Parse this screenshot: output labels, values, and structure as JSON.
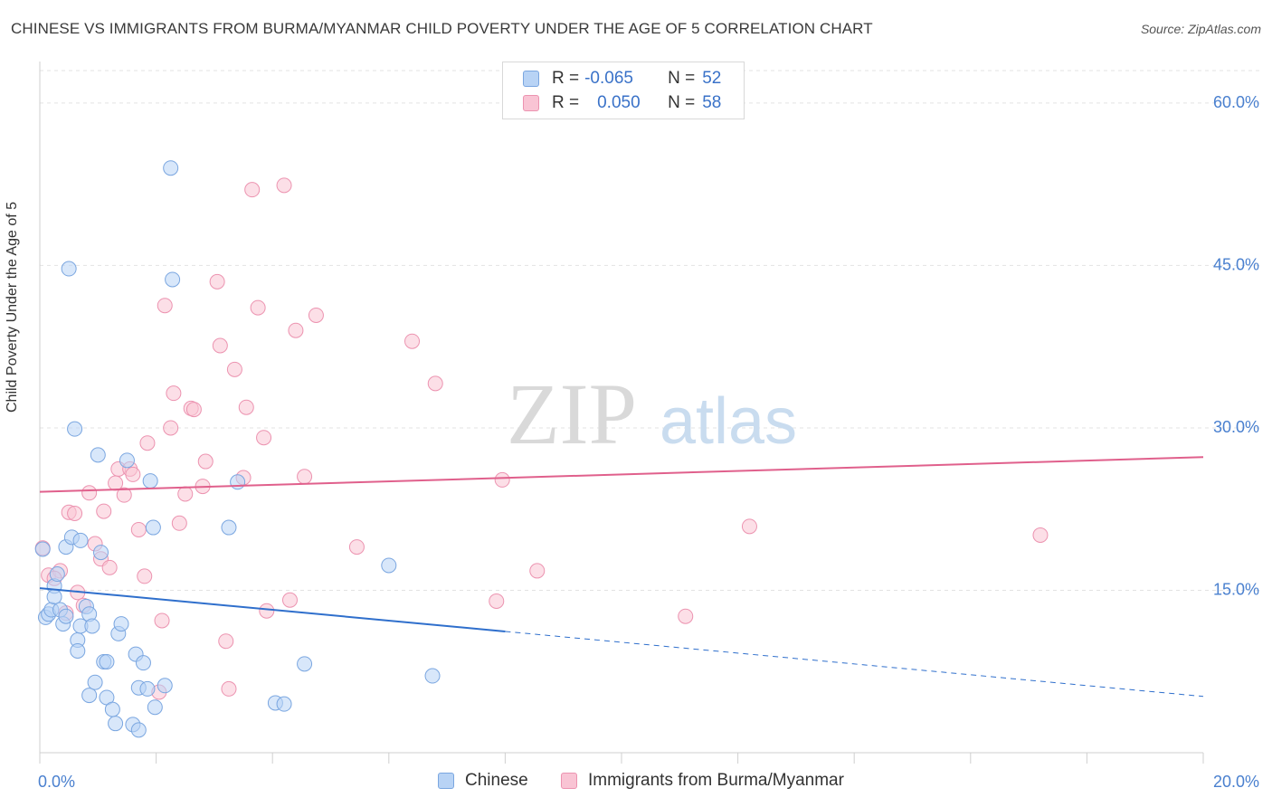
{
  "title": "CHINESE VS IMMIGRANTS FROM BURMA/MYANMAR CHILD POVERTY UNDER THE AGE OF 5 CORRELATION CHART",
  "source": "Source: ZipAtlas.com",
  "watermark": {
    "zip": "ZIP",
    "atlas": "atlas"
  },
  "legend": {
    "r_label": "R =",
    "n_label": "N =",
    "rows": [
      {
        "name": "Chinese",
        "r": "-0.065",
        "n": "52",
        "fill": "#b8d3f5",
        "stroke": "#7aa6e0"
      },
      {
        "name": "Immigrants from Burma/Myanmar",
        "r": "0.050",
        "n": "58",
        "fill": "#f9c4d4",
        "stroke": "#ec93b0"
      }
    ]
  },
  "chart_data": {
    "type": "scatter",
    "title": "CHINESE VS IMMIGRANTS FROM BURMA/MYANMAR CHILD POVERTY UNDER THE AGE OF 5 CORRELATION CHART",
    "xlabel": "",
    "ylabel": "Child Poverty Under the Age of 5",
    "xlim": [
      0,
      20
    ],
    "ylim": [
      0,
      63
    ],
    "x_tick_labels": [
      "0.0%",
      "20.0%"
    ],
    "y_ticks": [
      15,
      30,
      45,
      60
    ],
    "y_tick_labels": [
      "15.0%",
      "30.0%",
      "45.0%",
      "60.0%"
    ],
    "grid": true,
    "series": [
      {
        "name": "Chinese",
        "color": "#7aa6e0",
        "fill": "#b8d3f5",
        "trend": {
          "x0": 0,
          "y0": 15.2,
          "x1": 8.0,
          "y1": 11.2,
          "dash_to_x": 20,
          "dash_to_y": 5.2,
          "color": "#2f6fcc"
        },
        "points": [
          [
            0.05,
            18.8
          ],
          [
            0.1,
            12.5
          ],
          [
            0.15,
            12.8
          ],
          [
            0.2,
            13.2
          ],
          [
            0.25,
            15.4
          ],
          [
            0.25,
            14.4
          ],
          [
            0.3,
            16.5
          ],
          [
            0.35,
            13.2
          ],
          [
            0.4,
            11.9
          ],
          [
            0.45,
            12.6
          ],
          [
            0.45,
            19.0
          ],
          [
            0.5,
            44.7
          ],
          [
            0.55,
            19.9
          ],
          [
            0.6,
            29.9
          ],
          [
            0.65,
            10.4
          ],
          [
            0.65,
            9.4
          ],
          [
            0.7,
            19.6
          ],
          [
            0.7,
            11.7
          ],
          [
            0.8,
            13.5
          ],
          [
            0.85,
            12.8
          ],
          [
            0.85,
            5.3
          ],
          [
            0.9,
            11.7
          ],
          [
            0.95,
            6.5
          ],
          [
            1.0,
            27.5
          ],
          [
            1.05,
            18.5
          ],
          [
            1.1,
            8.4
          ],
          [
            1.15,
            5.1
          ],
          [
            1.15,
            8.4
          ],
          [
            1.25,
            4.0
          ],
          [
            1.3,
            2.7
          ],
          [
            1.35,
            11.0
          ],
          [
            1.4,
            11.9
          ],
          [
            1.5,
            27.0
          ],
          [
            1.6,
            2.6
          ],
          [
            1.65,
            9.1
          ],
          [
            1.7,
            6.0
          ],
          [
            1.7,
            2.1
          ],
          [
            1.78,
            8.3
          ],
          [
            1.85,
            5.9
          ],
          [
            1.9,
            25.1
          ],
          [
            1.95,
            20.8
          ],
          [
            1.98,
            4.2
          ],
          [
            2.15,
            6.2
          ],
          [
            2.25,
            54.0
          ],
          [
            2.28,
            43.7
          ],
          [
            3.25,
            20.8
          ],
          [
            3.4,
            25.0
          ],
          [
            4.05,
            4.6
          ],
          [
            4.2,
            4.5
          ],
          [
            4.55,
            8.2
          ],
          [
            6.0,
            17.3
          ],
          [
            6.75,
            7.1
          ]
        ]
      },
      {
        "name": "Immigrants from Burma/Myanmar",
        "color": "#ec93b0",
        "fill": "#f9c4d4",
        "trend": {
          "x0": 0,
          "y0": 24.1,
          "x1": 20,
          "y1": 27.3,
          "color": "#e0608c"
        },
        "points": [
          [
            0.05,
            18.9
          ],
          [
            0.15,
            16.4
          ],
          [
            0.35,
            16.8
          ],
          [
            0.45,
            12.9
          ],
          [
            0.5,
            22.2
          ],
          [
            0.6,
            22.1
          ],
          [
            0.65,
            14.8
          ],
          [
            0.75,
            13.6
          ],
          [
            0.85,
            24.0
          ],
          [
            0.95,
            19.3
          ],
          [
            1.05,
            17.9
          ],
          [
            1.1,
            22.3
          ],
          [
            1.2,
            17.1
          ],
          [
            1.3,
            24.9
          ],
          [
            1.35,
            26.2
          ],
          [
            1.45,
            23.8
          ],
          [
            1.55,
            26.2
          ],
          [
            1.6,
            25.7
          ],
          [
            1.7,
            20.6
          ],
          [
            1.8,
            16.3
          ],
          [
            1.85,
            28.6
          ],
          [
            2.05,
            5.6
          ],
          [
            2.1,
            12.2
          ],
          [
            2.15,
            41.3
          ],
          [
            2.25,
            30.0
          ],
          [
            2.3,
            33.2
          ],
          [
            2.4,
            21.2
          ],
          [
            2.5,
            23.9
          ],
          [
            2.6,
            31.8
          ],
          [
            2.65,
            31.7
          ],
          [
            2.8,
            24.6
          ],
          [
            2.85,
            26.9
          ],
          [
            3.05,
            43.5
          ],
          [
            3.1,
            37.6
          ],
          [
            3.2,
            10.3
          ],
          [
            3.25,
            5.9
          ],
          [
            3.35,
            35.4
          ],
          [
            3.5,
            25.4
          ],
          [
            3.55,
            31.9
          ],
          [
            3.65,
            52.0
          ],
          [
            3.75,
            41.1
          ],
          [
            3.85,
            29.1
          ],
          [
            3.9,
            13.1
          ],
          [
            4.2,
            52.4
          ],
          [
            4.3,
            14.1
          ],
          [
            4.4,
            39.0
          ],
          [
            4.55,
            25.5
          ],
          [
            4.75,
            40.4
          ],
          [
            5.45,
            19.0
          ],
          [
            6.4,
            38.0
          ],
          [
            6.8,
            34.1
          ],
          [
            7.85,
            14.0
          ],
          [
            7.95,
            25.2
          ],
          [
            8.55,
            16.8
          ],
          [
            11.1,
            12.6
          ],
          [
            12.2,
            20.9
          ],
          [
            17.2,
            20.1
          ],
          [
            0.25,
            16.1
          ]
        ]
      }
    ]
  }
}
